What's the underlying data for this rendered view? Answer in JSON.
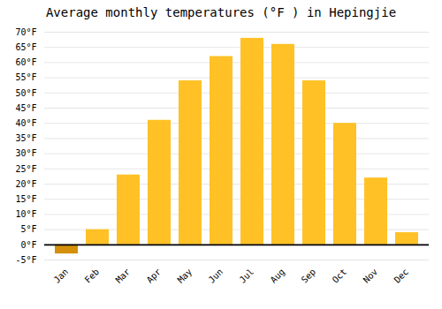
{
  "chart_data": {
    "type": "bar",
    "title": "Average monthly temperatures (°F ) in Hepingjie",
    "categories": [
      "Jan",
      "Feb",
      "Mar",
      "Apr",
      "May",
      "Jun",
      "Jul",
      "Aug",
      "Sep",
      "Oct",
      "Nov",
      "Dec"
    ],
    "values": [
      -3,
      5,
      23,
      41,
      54,
      62,
      68,
      66,
      54,
      40,
      22,
      4
    ],
    "colors": [
      "#D4900A",
      "#FFC125",
      "#FFC125",
      "#FFC125",
      "#FFC125",
      "#FFC125",
      "#FFC125",
      "#FFC125",
      "#FFC125",
      "#FFC125",
      "#FFC125",
      "#FFC125"
    ],
    "ylim": [
      -5,
      70
    ],
    "yticks": [
      {
        "value": -5,
        "label": "-5°F"
      },
      {
        "value": 0,
        "label": "0°F"
      },
      {
        "value": 5,
        "label": "5°F"
      },
      {
        "value": 10,
        "label": "10°F"
      },
      {
        "value": 15,
        "label": "15°F"
      },
      {
        "value": 20,
        "label": "20°F"
      },
      {
        "value": 25,
        "label": "25°F"
      },
      {
        "value": 30,
        "label": "30°F"
      },
      {
        "value": 35,
        "label": "35°F"
      },
      {
        "value": 40,
        "label": "40°F"
      },
      {
        "value": 45,
        "label": "45°F"
      },
      {
        "value": 50,
        "label": "50°F"
      },
      {
        "value": 55,
        "label": "55°F"
      },
      {
        "value": 60,
        "label": "60°F"
      },
      {
        "value": 65,
        "label": "65°F"
      },
      {
        "value": 70,
        "label": "70°F"
      }
    ],
    "grid": true
  }
}
